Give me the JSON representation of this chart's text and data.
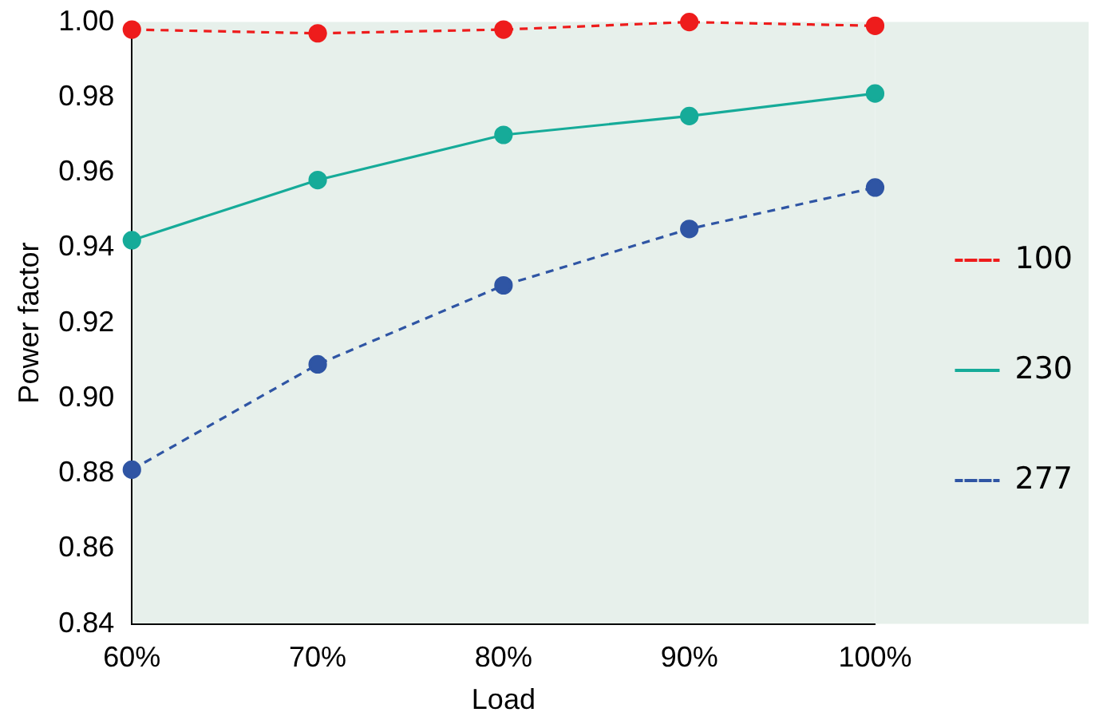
{
  "chart_data": {
    "type": "line",
    "xlabel": "Load",
    "ylabel": "Power factor",
    "categories": [
      "60%",
      "70%",
      "80%",
      "90%",
      "100%"
    ],
    "series": [
      {
        "name": "100",
        "color": "#ee1c1c",
        "line_style": "dashed",
        "values": [
          0.998,
          0.997,
          0.998,
          1.0,
          0.999
        ]
      },
      {
        "name": "230",
        "color": "#16ab99",
        "line_style": "solid",
        "values": [
          0.942,
          0.958,
          0.97,
          0.975,
          0.981
        ]
      },
      {
        "name": "277",
        "color": "#2f55a4",
        "line_style": "dashed",
        "values": [
          0.881,
          0.909,
          0.93,
          0.945,
          0.956
        ]
      }
    ],
    "ylim": [
      0.84,
      1.0
    ],
    "yticks": [
      {
        "value": 0.84,
        "label": "0.84"
      },
      {
        "value": 0.86,
        "label": "0.86"
      },
      {
        "value": 0.88,
        "label": "0.88"
      },
      {
        "value": 0.9,
        "label": "0.90"
      },
      {
        "value": 0.92,
        "label": "0.92"
      },
      {
        "value": 0.94,
        "label": "0.94"
      },
      {
        "value": 0.96,
        "label": "0.96"
      },
      {
        "value": 0.98,
        "label": "0.98"
      },
      {
        "value": 1.0,
        "label": "1.00"
      }
    ],
    "grid": false,
    "legend": "right",
    "marker": "circle"
  }
}
